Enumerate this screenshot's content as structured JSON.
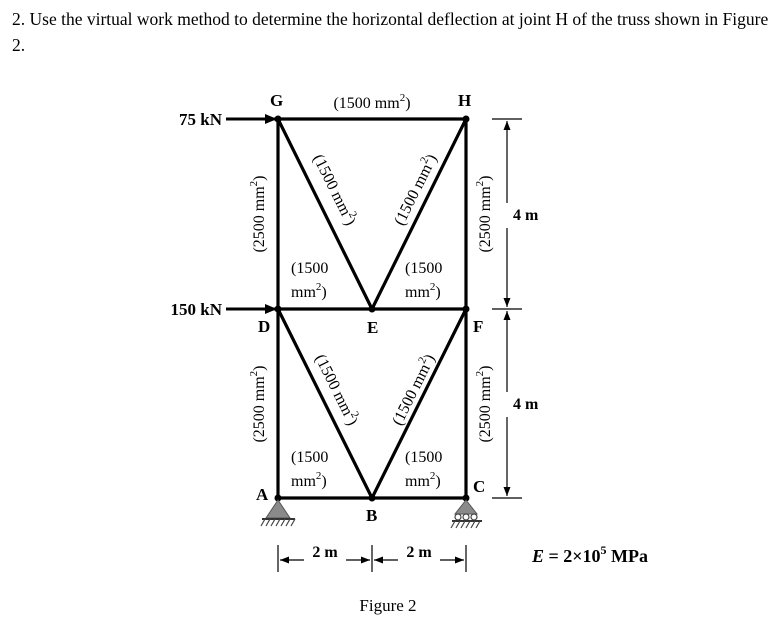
{
  "question": {
    "text": "2. Use the virtual work method to determine the horizontal deflection at joint H of the truss shown in Figure 2."
  },
  "figure": {
    "caption": "Figure 2",
    "nodes": {
      "G": "G",
      "H": "H",
      "D": "D",
      "E": "E",
      "F": "F",
      "A": "A",
      "B": "B",
      "C": "C"
    },
    "loads": {
      "top": "75 kN",
      "middle": "150 kN"
    },
    "area_exponent": "2",
    "member_areas": {
      "GH": {
        "pre": "(1500 mm",
        "post": ")"
      },
      "GD": {
        "pre": "(2500 mm",
        "post": ")"
      },
      "DA": {
        "pre": "(2500 mm",
        "post": ")"
      },
      "HF": {
        "pre": "(2500 mm",
        "post": ")"
      },
      "FC": {
        "pre": "(2500 mm",
        "post": ")"
      },
      "GE": {
        "pre": "(1500 mm",
        "post": ")"
      },
      "HE": {
        "pre": "(1500 mm",
        "post": ")"
      },
      "DB": {
        "pre": "(1500 mm",
        "post": ")"
      },
      "FB": {
        "pre": "(1500 mm",
        "post": ")"
      },
      "DE": {
        "line1": "(1500",
        "line2pre": "mm",
        "line2post": ")"
      },
      "EF": {
        "line1": "(1500",
        "line2pre": "mm",
        "line2post": ")"
      },
      "AB": {
        "line1": "(1500",
        "line2pre": "mm",
        "line2post": ")"
      },
      "BC": {
        "line1": "(1500",
        "line2pre": "mm",
        "line2post": ")"
      }
    },
    "dimensions": {
      "height_upper": "4 m",
      "height_lower": "4 m",
      "width_left": "2 m",
      "width_right": "2 m"
    },
    "modulus": {
      "symbol": "E",
      "equals": " = 2×10",
      "exponent": "5",
      "unit": " MPa"
    }
  }
}
